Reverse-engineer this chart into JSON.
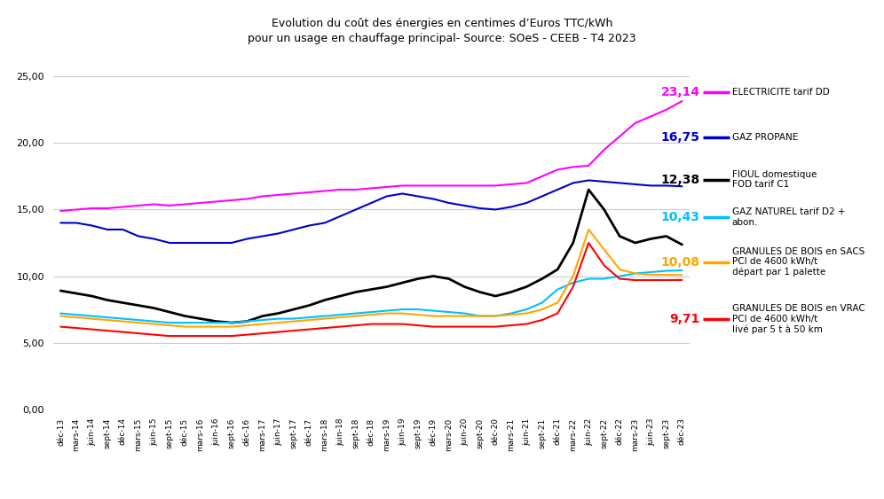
{
  "title_line1": "Evolution du coût des énergies en centimes d’Euros TTC/kWh",
  "title_line2": "pour un usage en chauffage principal- Source: SOeS - CEEB - T4 2023",
  "xlabel": "",
  "ylabel": "",
  "ylim": [
    0,
    27
  ],
  "yticks": [
    0.0,
    5.0,
    10.0,
    15.0,
    20.0,
    25.0
  ],
  "background_color": "#ffffff",
  "grid_color": "#cccccc",
  "x_labels": [
    "déc-13",
    "mars-14",
    "juin-14",
    "sept-14",
    "déc-14",
    "mars-15",
    "juin-15",
    "sept-15",
    "déc-15",
    "mars-16",
    "juin-16",
    "sept-16",
    "déc-16",
    "mars-17",
    "juin-17",
    "sept-17",
    "déc-17",
    "mars-18",
    "juin-18",
    "sept-18",
    "déc-18",
    "mars-19",
    "juin-19",
    "sept-19",
    "déc-19",
    "mars-20",
    "juin-20",
    "sept-20",
    "déc-20",
    "mars-21",
    "juin-21",
    "sept-21",
    "déc-21",
    "mars-22",
    "juin-22",
    "sept-22",
    "déc-22",
    "mars-23",
    "juin-23",
    "sept-23",
    "déc-23"
  ],
  "series": {
    "electricite": {
      "color": "#ff00ff",
      "label": "ELECTRICITE tarif DD",
      "final_value": "23,14",
      "final_color": "#ff00ff",
      "values": [
        14.9,
        15.0,
        15.1,
        15.1,
        15.2,
        15.3,
        15.4,
        15.3,
        15.4,
        15.5,
        15.6,
        15.7,
        15.8,
        16.0,
        16.1,
        16.2,
        16.3,
        16.4,
        16.5,
        16.5,
        16.6,
        16.7,
        16.8,
        16.8,
        16.8,
        16.8,
        16.8,
        16.8,
        16.8,
        16.9,
        17.0,
        17.5,
        18.0,
        18.2,
        18.3,
        19.5,
        20.5,
        21.5,
        22.0,
        22.5,
        23.14
      ]
    },
    "gaz_propane": {
      "color": "#0000cd",
      "label": "GAZ PROPANE",
      "final_value": "16,75",
      "final_color": "#0000cd",
      "values": [
        14.0,
        14.0,
        13.8,
        13.5,
        13.5,
        13.0,
        12.8,
        12.5,
        12.5,
        12.5,
        12.5,
        12.5,
        12.8,
        13.0,
        13.2,
        13.5,
        13.8,
        14.0,
        14.5,
        15.0,
        15.5,
        16.0,
        16.2,
        16.0,
        15.8,
        15.5,
        15.3,
        15.1,
        15.0,
        15.2,
        15.5,
        16.0,
        16.5,
        17.0,
        17.2,
        17.1,
        17.0,
        16.9,
        16.8,
        16.8,
        16.75
      ]
    },
    "fioul": {
      "color": "#000000",
      "label": "FIOUL domestique\nFOD tarif C1",
      "final_value": "12,38",
      "final_color": "#000000",
      "values": [
        8.9,
        8.7,
        8.5,
        8.2,
        8.0,
        7.8,
        7.6,
        7.3,
        7.0,
        6.8,
        6.6,
        6.5,
        6.6,
        7.0,
        7.2,
        7.5,
        7.8,
        8.2,
        8.5,
        8.8,
        9.0,
        9.2,
        9.5,
        9.8,
        10.0,
        9.8,
        9.2,
        8.8,
        8.5,
        8.8,
        9.2,
        9.8,
        10.5,
        12.5,
        16.5,
        15.0,
        13.0,
        12.5,
        12.8,
        13.0,
        12.38
      ]
    },
    "gaz_naturel": {
      "color": "#00bfff",
      "label": "GAZ NATUREL tarif D2 +\nabon.",
      "final_value": "10,43",
      "final_color": "#00bfff",
      "values": [
        7.2,
        7.1,
        7.0,
        6.9,
        6.8,
        6.7,
        6.6,
        6.5,
        6.5,
        6.5,
        6.5,
        6.5,
        6.6,
        6.7,
        6.8,
        6.8,
        6.9,
        7.0,
        7.1,
        7.2,
        7.3,
        7.4,
        7.5,
        7.5,
        7.4,
        7.3,
        7.2,
        7.0,
        7.0,
        7.2,
        7.5,
        8.0,
        9.0,
        9.5,
        9.8,
        9.8,
        10.0,
        10.2,
        10.3,
        10.4,
        10.43
      ]
    },
    "granules_sacs": {
      "color": "#ffa500",
      "label": "GRANULES DE BOIS en SACS\nPCI de 4600 kWh/t\ndépart par 1 palette",
      "final_value": "10,08",
      "final_color": "#ffa500",
      "values": [
        7.0,
        6.9,
        6.8,
        6.7,
        6.6,
        6.5,
        6.4,
        6.3,
        6.2,
        6.2,
        6.2,
        6.2,
        6.3,
        6.4,
        6.5,
        6.6,
        6.7,
        6.8,
        6.9,
        7.0,
        7.1,
        7.2,
        7.2,
        7.1,
        7.0,
        7.0,
        7.0,
        7.0,
        7.0,
        7.1,
        7.2,
        7.5,
        8.0,
        10.0,
        13.5,
        12.0,
        10.5,
        10.2,
        10.1,
        10.1,
        10.08
      ]
    },
    "granules_vrac": {
      "color": "#ff0000",
      "label": "GRANULES DE BOIS en VRAC\nPCI de 4600 kWh/t\nlivé par 5 t à 50 km",
      "final_value": "9,71",
      "final_color": "#ff0000",
      "values": [
        6.2,
        6.1,
        6.0,
        5.9,
        5.8,
        5.7,
        5.6,
        5.5,
        5.5,
        5.5,
        5.5,
        5.5,
        5.6,
        5.7,
        5.8,
        5.9,
        6.0,
        6.1,
        6.2,
        6.3,
        6.4,
        6.4,
        6.4,
        6.3,
        6.2,
        6.2,
        6.2,
        6.2,
        6.2,
        6.3,
        6.4,
        6.7,
        7.2,
        9.2,
        12.5,
        10.8,
        9.8,
        9.7,
        9.7,
        9.7,
        9.71
      ]
    }
  }
}
